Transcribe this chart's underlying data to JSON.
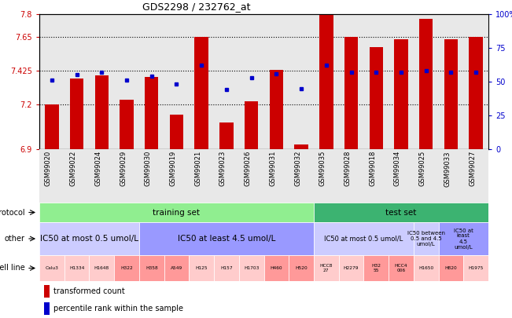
{
  "title": "GDS2298 / 232762_at",
  "gsm_labels": [
    "GSM99020",
    "GSM99022",
    "GSM99024",
    "GSM99029",
    "GSM99030",
    "GSM99019",
    "GSM99021",
    "GSM99023",
    "GSM99026",
    "GSM99031",
    "GSM99032",
    "GSM99035",
    "GSM99028",
    "GSM99018",
    "GSM99034",
    "GSM99025",
    "GSM99033",
    "GSM99027"
  ],
  "red_values": [
    7.2,
    7.37,
    7.39,
    7.23,
    7.38,
    7.13,
    7.65,
    7.08,
    7.22,
    7.43,
    6.93,
    7.8,
    7.65,
    7.58,
    7.63,
    7.77,
    7.63,
    7.65
  ],
  "blue_values": [
    51,
    55,
    57,
    51,
    54,
    48,
    62,
    44,
    53,
    56,
    45,
    62,
    57,
    57,
    57,
    58,
    57,
    57
  ],
  "ymin": 6.9,
  "ymax": 7.8,
  "yticks": [
    6.9,
    7.2,
    7.425,
    7.65,
    7.8
  ],
  "ytick_labels": [
    "6.9",
    "7.2",
    "7.425",
    "7.65",
    "7.8"
  ],
  "right_yticks": [
    0,
    25,
    50,
    75,
    100
  ],
  "right_ytick_labels": [
    "0",
    "25",
    "50",
    "75",
    "100%"
  ],
  "bar_color": "#cc0000",
  "dot_color": "#0000cc",
  "protocol_training_color": "#90ee90",
  "protocol_test_color": "#3cb371",
  "other_light_color": "#ccccff",
  "other_dark_color": "#9999ff",
  "bg_color": "#e8e8e8",
  "protocol_row": {
    "training_label": "training set",
    "test_label": "test set"
  },
  "cell_lines": [
    "Calu3",
    "H1334",
    "H1648",
    "H322",
    "H358",
    "A549",
    "H125",
    "H157",
    "H1703",
    "H460",
    "H520",
    "HCC8\n27",
    "H2279",
    "H32\n55",
    "HCC4\n006",
    "H1650",
    "H820",
    "H1975"
  ],
  "cell_colors": [
    "#ffcccc",
    "#ffcccc",
    "#ffcccc",
    "#ff9999",
    "#ff9999",
    "#ff9999",
    "#ffcccc",
    "#ffcccc",
    "#ffcccc",
    "#ff9999",
    "#ff9999",
    "#ffcccc",
    "#ffcccc",
    "#ff9999",
    "#ff9999",
    "#ffcccc",
    "#ff9999",
    "#ffcccc"
  ]
}
